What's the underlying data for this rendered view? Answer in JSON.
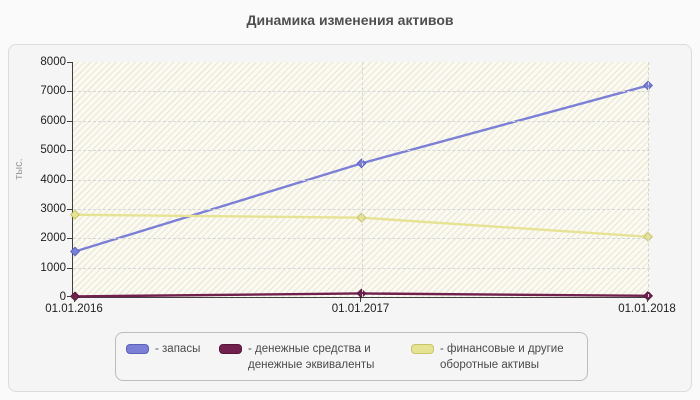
{
  "title": "Динамика изменения активов",
  "y_axis": {
    "label": "тыс.",
    "ticks": [
      0,
      1000,
      2000,
      3000,
      4000,
      5000,
      6000,
      7000,
      8000
    ]
  },
  "x_axis": {
    "labels": [
      "01.01.2016",
      "01.01.2017",
      "01.01.2018"
    ]
  },
  "legend": {
    "items": [
      {
        "label": "- запасы"
      },
      {
        "label": "- денежные средства и\nденежные эквиваленты"
      },
      {
        "label": "- финансовые и другие\nоборотные активы"
      }
    ]
  },
  "chart_data": {
    "type": "line",
    "title": "Динамика изменения активов",
    "x": [
      "01.01.2016",
      "01.01.2017",
      "01.01.2018"
    ],
    "series": [
      {
        "name": "запасы",
        "values": [
          1550,
          4550,
          7200
        ],
        "color": "#7b80d6",
        "marker_border": "#5c61bd"
      },
      {
        "name": "денежные средства и денежные эквиваленты",
        "values": [
          20,
          120,
          40
        ],
        "color": "#72204e",
        "marker_border": "#571638"
      },
      {
        "name": "финансовые и другие оборотные активы",
        "values": [
          2800,
          2700,
          2050
        ],
        "color": "#e7e394",
        "marker_border": "#c8c468"
      }
    ],
    "ylim": [
      0,
      8000
    ],
    "ylabel": "тыс.",
    "grid": true,
    "grid_style": "dashed",
    "legend_position": "bottom",
    "plot_background": "hatched",
    "marker": "diamond"
  }
}
